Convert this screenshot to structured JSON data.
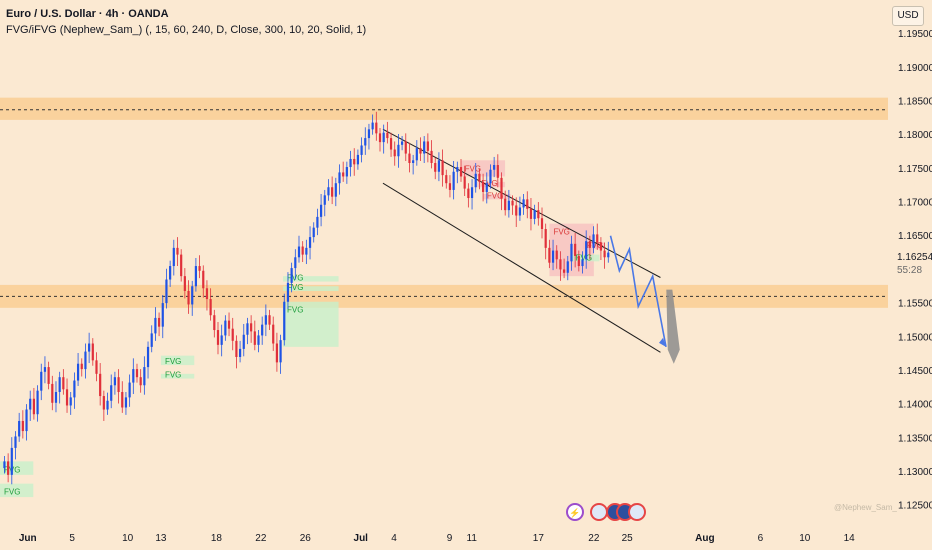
{
  "legend": {
    "title": "Euro / U.S. Dollar · 4h · OANDA",
    "indicator": "FVG/iFVG (Nephew_Sam_) (, 15, 60, 240, D, Close, 300, 10, 20, Solid, 1)"
  },
  "currency_button": "USD",
  "current_price": {
    "value": "1.16254",
    "countdown": "55:28"
  },
  "watermark": "@Nephew_Sam_",
  "colors": {
    "background": "#fbe9d2",
    "zone": "#f9c98b",
    "up_candle": "#1e53e5",
    "down_candle": "#e0303a",
    "wick": "#2a2a2a",
    "fvg_green": "#c8f0cb",
    "fvg_red": "#f8c0c0",
    "projection": "#4a78e6",
    "arrow": "#8c8c8c"
  },
  "event_icons": [
    "lightning-icon",
    "us-flag-icon",
    "us-flag-icon",
    "us-flag-icon",
    "us-flag-icon"
  ],
  "chart_data": {
    "type": "candlestick",
    "symbol": "EURUSD",
    "timeframe": "4h",
    "y_ticks": [
      1.125,
      1.13,
      1.135,
      1.14,
      1.145,
      1.15,
      1.155,
      1.16,
      1.165,
      1.17,
      1.175,
      1.18,
      1.185,
      1.19,
      1.195
    ],
    "y_tick_labels": [
      "1.12500",
      "1.13000",
      "1.13500",
      "1.14000",
      "1.14500",
      "1.15000",
      "1.15500",
      "1.16000",
      "1.16500",
      "1.17000",
      "1.17500",
      "1.18000",
      "1.18500",
      "1.19000",
      "1.19500"
    ],
    "ylim": [
      1.1225,
      1.2
    ],
    "x_tick_labels": [
      {
        "label": "Jun",
        "day": 0,
        "bold": true
      },
      {
        "label": "5",
        "day": 4
      },
      {
        "label": "10",
        "day": 9
      },
      {
        "label": "13",
        "day": 12
      },
      {
        "label": "18",
        "day": 17
      },
      {
        "label": "22",
        "day": 21
      },
      {
        "label": "26",
        "day": 25
      },
      {
        "label": "Jul",
        "day": 30,
        "bold": true
      },
      {
        "label": "4",
        "day": 33
      },
      {
        "label": "9",
        "day": 38
      },
      {
        "label": "11",
        "day": 40
      },
      {
        "label": "17",
        "day": 46
      },
      {
        "label": "22",
        "day": 51
      },
      {
        "label": "25",
        "day": 54
      },
      {
        "label": "Aug",
        "day": 61,
        "bold": true
      },
      {
        "label": "6",
        "day": 66
      },
      {
        "label": "10",
        "day": 70
      },
      {
        "label": "14",
        "day": 74
      }
    ],
    "xlim_days": [
      -2.5,
      77.5
    ],
    "closes": [
      1.1315,
      1.1295,
      1.1335,
      1.1352,
      1.1375,
      1.136,
      1.1392,
      1.1408,
      1.1385,
      1.142,
      1.1448,
      1.1455,
      1.143,
      1.1402,
      1.1418,
      1.144,
      1.1422,
      1.1398,
      1.141,
      1.1435,
      1.146,
      1.1452,
      1.1478,
      1.149,
      1.1465,
      1.1445,
      1.1412,
      1.1392,
      1.1405,
      1.1428,
      1.144,
      1.1418,
      1.1395,
      1.141,
      1.1432,
      1.1452,
      1.144,
      1.1428,
      1.1455,
      1.1485,
      1.1505,
      1.1528,
      1.1515,
      1.155,
      1.1585,
      1.1605,
      1.1632,
      1.1622,
      1.159,
      1.1568,
      1.1548,
      1.1575,
      1.1605,
      1.1598,
      1.1572,
      1.1556,
      1.1532,
      1.151,
      1.1488,
      1.1502,
      1.1524,
      1.1512,
      1.1494,
      1.147,
      1.1482,
      1.1503,
      1.152,
      1.1508,
      1.1488,
      1.1502,
      1.1518,
      1.1532,
      1.1518,
      1.149,
      1.1462,
      1.1495,
      1.1552,
      1.158,
      1.1602,
      1.1618,
      1.1634,
      1.1622,
      1.1632,
      1.1648,
      1.1662,
      1.1678,
      1.1696,
      1.171,
      1.1722,
      1.1708,
      1.1728,
      1.1744,
      1.1738,
      1.1752,
      1.1764,
      1.1756,
      1.177,
      1.1784,
      1.1795,
      1.1808,
      1.1818,
      1.1802,
      1.1789,
      1.1803,
      1.1795,
      1.1778,
      1.1768,
      1.1785,
      1.179,
      1.1772,
      1.1758,
      1.1762,
      1.178,
      1.1772,
      1.179,
      1.1776,
      1.1758,
      1.1745,
      1.1762,
      1.174,
      1.1728,
      1.1718,
      1.1745,
      1.1752,
      1.1738,
      1.172,
      1.1706,
      1.1722,
      1.1742,
      1.173,
      1.1715,
      1.1728,
      1.1748,
      1.1755,
      1.1736,
      1.1705,
      1.1688,
      1.1702,
      1.1695,
      1.168,
      1.1692,
      1.1704,
      1.169,
      1.1675,
      1.1688,
      1.1676,
      1.166,
      1.1632,
      1.161,
      1.1628,
      1.1615,
      1.16,
      1.1595,
      1.1612,
      1.1638,
      1.162,
      1.1605,
      1.1615,
      1.1642,
      1.1632,
      1.1652,
      1.164,
      1.1628,
      1.1618,
      1.1625
    ],
    "zones": [
      {
        "from": 1.1822,
        "to": 1.1855,
        "line": 1.1837
      },
      {
        "from": 1.1543,
        "to": 1.1577,
        "line": 1.156
      }
    ],
    "fvg_boxes": [
      {
        "label": "FVG",
        "kind": "bull",
        "day0": -2.5,
        "day1": 0.5,
        "top": 1.1315,
        "bottom": 1.1295
      },
      {
        "label": "FVG",
        "kind": "bull",
        "day0": -2.5,
        "day1": 0.5,
        "top": 1.1282,
        "bottom": 1.1262
      },
      {
        "label": "FVG",
        "kind": "bull",
        "day0": 12,
        "day1": 15,
        "top": 1.1472,
        "bottom": 1.1458
      },
      {
        "label": "FVG",
        "kind": "bull",
        "day0": 12,
        "day1": 15,
        "top": 1.1445,
        "bottom": 1.1438
      },
      {
        "label": "FVG",
        "kind": "bull",
        "day0": 23,
        "day1": 28,
        "top": 1.159,
        "bottom": 1.1582
      },
      {
        "label": "FVG",
        "kind": "bull",
        "day0": 23,
        "day1": 28,
        "top": 1.1575,
        "bottom": 1.1568
      },
      {
        "label": "FVG",
        "kind": "bull",
        "day0": 23,
        "day1": 28,
        "top": 1.1552,
        "bottom": 1.1485
      },
      {
        "label": "FVG",
        "kind": "bear",
        "day0": 39,
        "day1": 43,
        "top": 1.1762,
        "bottom": 1.1738
      },
      {
        "label": "FVG",
        "kind": "bear",
        "day0": 40.5,
        "day1": 43,
        "top": 1.173,
        "bottom": 1.1722
      },
      {
        "label": "FVG",
        "kind": "bear",
        "day0": 41,
        "day1": 43.5,
        "top": 1.1712,
        "bottom": 1.1704
      },
      {
        "label": "FVG",
        "kind": "bear",
        "day0": 47,
        "day1": 51,
        "top": 1.1668,
        "bottom": 1.159
      },
      {
        "label": "FVG",
        "kind": "bear",
        "day0": 50,
        "day1": 52,
        "top": 1.164,
        "bottom": 1.163
      },
      {
        "label": "FVG",
        "kind": "bull",
        "day0": 49,
        "day1": 51.5,
        "top": 1.1622,
        "bottom": 1.1612
      }
    ],
    "channel": {
      "upper": [
        {
          "day": 32,
          "price": 1.1808
        },
        {
          "day": 57,
          "price": 1.1588
        }
      ],
      "lower": [
        {
          "day": 32,
          "price": 1.1728
        },
        {
          "day": 57,
          "price": 1.1477
        }
      ]
    },
    "projection_path": [
      {
        "day": 52.5,
        "price": 1.165
      },
      {
        "day": 53.3,
        "price": 1.1598
      },
      {
        "day": 54.2,
        "price": 1.163
      },
      {
        "day": 55.0,
        "price": 1.1545
      },
      {
        "day": 56.3,
        "price": 1.159
      },
      {
        "day": 57.5,
        "price": 1.1485
      }
    ],
    "target_arrow": {
      "from_day": 57.8,
      "from_price": 1.157,
      "to_day": 58.2,
      "to_price": 1.146
    }
  }
}
